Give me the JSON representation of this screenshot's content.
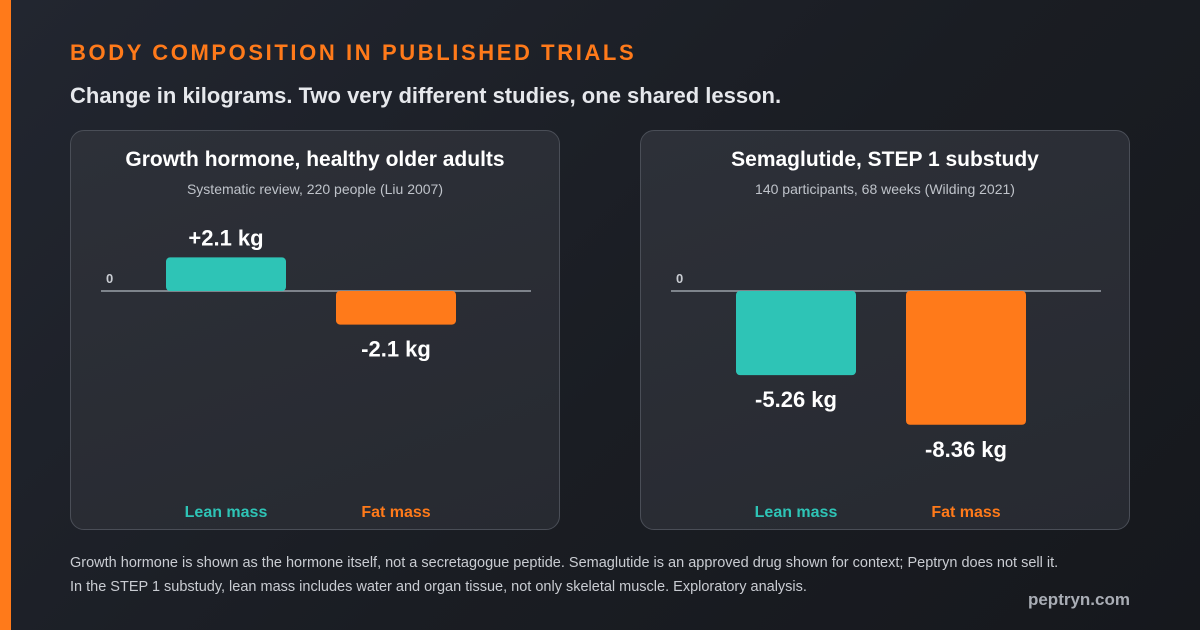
{
  "header": {
    "eyebrow": "BODY COMPOSITION IN PUBLISHED TRIALS",
    "subtitle": "Change in kilograms. Two very different studies, one shared lesson."
  },
  "colors": {
    "accent": "#ff7a1a",
    "lean": "#2ec4b6",
    "fat": "#ff7a1a",
    "baseline": "#9aa0a8"
  },
  "chart_data": [
    {
      "type": "bar",
      "title": "Growth hormone, healthy older adults",
      "subtitle": "Systematic review, 220 people (Liu 2007)",
      "categories": [
        "Lean mass",
        "Fat mass"
      ],
      "values": [
        2.1,
        -2.1
      ],
      "value_labels": [
        "+2.1 kg",
        "-2.1 kg"
      ],
      "zero_label": "0",
      "colors": [
        "#2ec4b6",
        "#ff7a1a"
      ],
      "grid": false
    },
    {
      "type": "bar",
      "title": "Semaglutide, STEP 1 substudy",
      "subtitle": "140 participants, 68 weeks (Wilding 2021)",
      "categories": [
        "Lean mass",
        "Fat mass"
      ],
      "values": [
        -5.26,
        -8.36
      ],
      "value_labels": [
        "-5.26 kg",
        "-8.36 kg"
      ],
      "zero_label": "0",
      "colors": [
        "#2ec4b6",
        "#ff7a1a"
      ],
      "grid": false
    }
  ],
  "footnote": {
    "line1": "Growth hormone is shown as the hormone itself, not a secretagogue peptide. Semaglutide is an approved drug shown for context; Peptryn does not sell it.",
    "line2": "In the STEP 1 substudy, lean mass includes water and organ tissue, not only skeletal muscle. Exploratory analysis."
  },
  "brand": "peptryn.com"
}
